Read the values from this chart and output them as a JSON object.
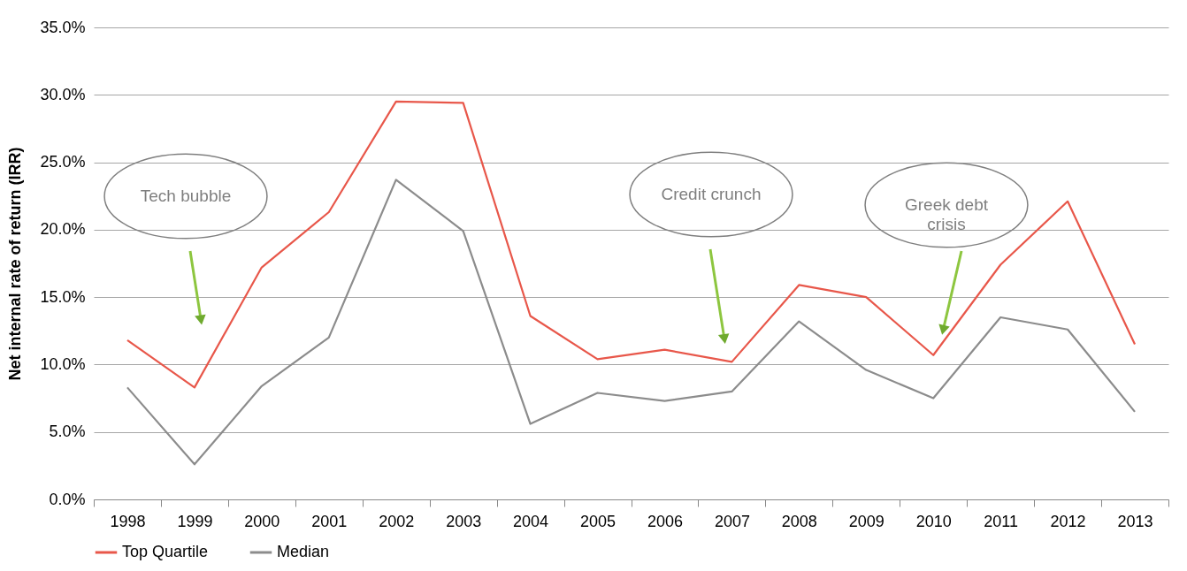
{
  "chart_data": {
    "type": "line",
    "ylabel": "Net internal rate of return (IRR)",
    "categories": [
      "1998",
      "1999",
      "2000",
      "2001",
      "2002",
      "2003",
      "2004",
      "2005",
      "2006",
      "2007",
      "2008",
      "2009",
      "2010",
      "2011",
      "2012",
      "2013"
    ],
    "series": [
      {
        "name": "Top Quartile",
        "color": "#e8574a",
        "values": [
          11.8,
          8.3,
          17.2,
          21.3,
          29.5,
          29.4,
          13.6,
          10.4,
          11.1,
          10.2,
          15.9,
          15.0,
          10.7,
          17.4,
          22.1,
          11.5
        ]
      },
      {
        "name": "Median",
        "color": "#8c8c8c",
        "values": [
          8.3,
          2.6,
          8.4,
          12.0,
          23.7,
          19.9,
          5.6,
          7.9,
          7.3,
          8.0,
          13.2,
          9.6,
          7.5,
          13.5,
          12.6,
          6.5
        ]
      }
    ],
    "ylim": [
      0,
      35
    ],
    "yticks": [
      {
        "value": 0,
        "label": "0.0%"
      },
      {
        "value": 5,
        "label": "5.0%"
      },
      {
        "value": 10,
        "label": "10.0%"
      },
      {
        "value": 15,
        "label": "15.0%"
      },
      {
        "value": 20,
        "label": "20.0%"
      },
      {
        "value": 25,
        "label": "25.0%"
      },
      {
        "value": 30,
        "label": "30.0%"
      },
      {
        "value": 35,
        "label": "35.0%"
      }
    ],
    "grid": "y",
    "legend": "bottom",
    "marker": "none",
    "line_style": "solid",
    "annotations": [
      "Tech bubble",
      "Credit crunch",
      "Greek debt crisis"
    ]
  }
}
